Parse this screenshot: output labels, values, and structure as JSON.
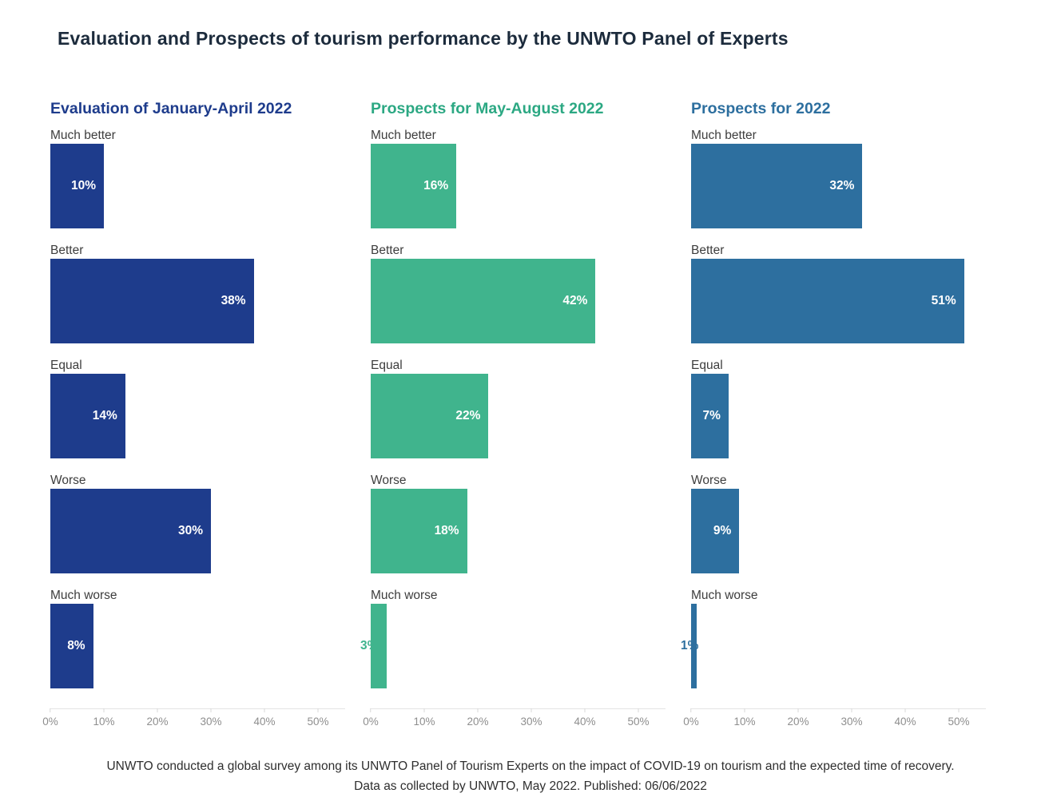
{
  "page": {
    "title": "Evaluation and Prospects of tourism performance by the UNWTO Panel of Experts",
    "footer_line1": "UNWTO conducted a global survey among its UNWTO Panel of Tourism Experts on the impact of COVID-19 on tourism and the expected time of recovery.",
    "footer_line2": "Data as collected by UNWTO, May 2022. Published: 06/06/2022"
  },
  "chart_data": [
    {
      "type": "bar",
      "orientation": "horizontal",
      "title": "Evaluation of January-April 2022",
      "title_color": "#1e3c8c",
      "bar_color": "#1e3c8c",
      "categories": [
        "Much better",
        "Better",
        "Equal",
        "Worse",
        "Much worse"
      ],
      "values": [
        10,
        38,
        14,
        30,
        8
      ],
      "value_labels": [
        "10%",
        "38%",
        "14%",
        "30%",
        "8%"
      ],
      "xlim": [
        0,
        55
      ],
      "x_tick_values": [
        0,
        10,
        20,
        30,
        40,
        50
      ],
      "x_ticks": [
        "0%",
        "10%",
        "20%",
        "30%",
        "40%",
        "50%"
      ],
      "grid": false,
      "legend": "none"
    },
    {
      "type": "bar",
      "orientation": "horizontal",
      "title": "Prospects for May-August 2022",
      "title_color": "#2ca883",
      "bar_color": "#40b48d",
      "categories": [
        "Much better",
        "Better",
        "Equal",
        "Worse",
        "Much worse"
      ],
      "values": [
        16,
        42,
        22,
        18,
        3
      ],
      "value_labels": [
        "16%",
        "42%",
        "22%",
        "18%",
        "3%"
      ],
      "xlim": [
        0,
        55
      ],
      "x_tick_values": [
        0,
        10,
        20,
        30,
        40,
        50
      ],
      "x_ticks": [
        "0%",
        "10%",
        "20%",
        "30%",
        "40%",
        "50%"
      ],
      "grid": false,
      "legend": "none"
    },
    {
      "type": "bar",
      "orientation": "horizontal",
      "title": "Prospects for 2022",
      "title_color": "#2d6f9f",
      "bar_color": "#2d6f9f",
      "categories": [
        "Much better",
        "Better",
        "Equal",
        "Worse",
        "Much worse"
      ],
      "values": [
        32,
        51,
        7,
        9,
        1
      ],
      "value_labels": [
        "32%",
        "51%",
        "7%",
        "9%",
        "1%"
      ],
      "xlim": [
        0,
        55
      ],
      "x_tick_values": [
        0,
        10,
        20,
        30,
        40,
        50
      ],
      "x_ticks": [
        "0%",
        "10%",
        "20%",
        "30%",
        "40%",
        "50%"
      ],
      "grid": false,
      "legend": "none"
    }
  ]
}
